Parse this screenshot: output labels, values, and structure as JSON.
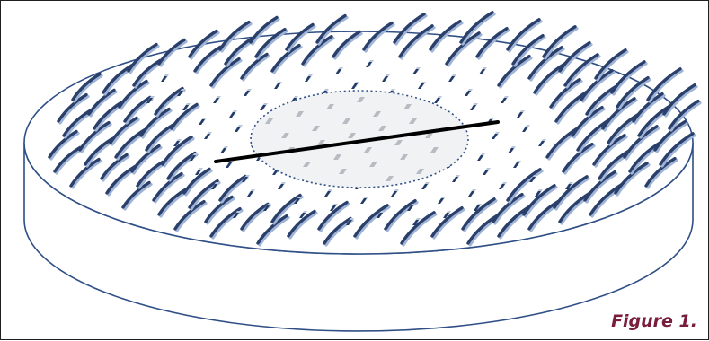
{
  "caption": "Figure 1.",
  "colors": {
    "disc_outline": "#2f4f86",
    "blade_dark": "#2a3f6a",
    "blade_light": "#9fb4d6",
    "stub_dark": "#223a66",
    "stub_light": "#b9c6da",
    "center_fill": "#f1f2f4",
    "center_stub": "#b8bcc2",
    "scan_line": "#000000",
    "caption": "#7a1c3c"
  },
  "icons": {
    "disc": "disc-cylinder",
    "center_region": "dotted-ellipse",
    "scan_line": "line-segment"
  }
}
